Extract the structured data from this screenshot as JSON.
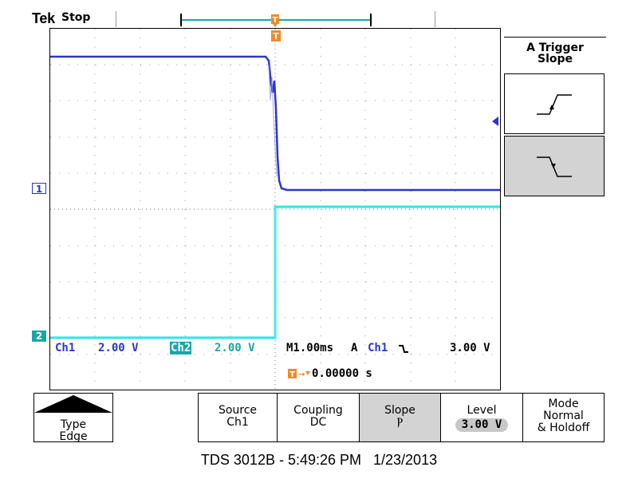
{
  "header": {
    "brand": "Tek",
    "run_state": "Stop"
  },
  "channels": {
    "ch1_marker": "1",
    "ch2_marker": "2"
  },
  "readouts": {
    "ch1_label": "Ch1",
    "ch1_scale": "2.00 V",
    "ch2_label": "Ch2",
    "ch2_scale": "2.00 V",
    "time_scale": "M1.00ms",
    "trigger_mode_letter": "A",
    "trigger_source": "Ch1",
    "trigger_level": "3.00 V",
    "trigger_position": "0.00000 s"
  },
  "side_menu": {
    "title_line1": "A Trigger",
    "title_line2": "Slope",
    "options": [
      {
        "icon": "rising-edge-icon",
        "selected": false
      },
      {
        "icon": "falling-edge-icon",
        "selected": true
      }
    ]
  },
  "bottom_menu": {
    "type_label1": "Type",
    "type_label2": "Edge",
    "source_label1": "Source",
    "source_label2": "Ch1",
    "coupling_label1": "Coupling",
    "coupling_label2": "DC",
    "slope_label1": "Slope",
    "slope_label2": "Ⲣ",
    "level_label1": "Level",
    "level_label2": "3.00 V",
    "mode_label1": "Mode",
    "mode_label2": "Normal",
    "mode_label3": "& Holdoff"
  },
  "footer": {
    "text": "TDS 3012B - 5:49:26 PM   1/23/2013"
  },
  "colors": {
    "ch1": "#2b36c9",
    "ch2": "#1aa6a6",
    "trigger": "#f08a24"
  }
}
